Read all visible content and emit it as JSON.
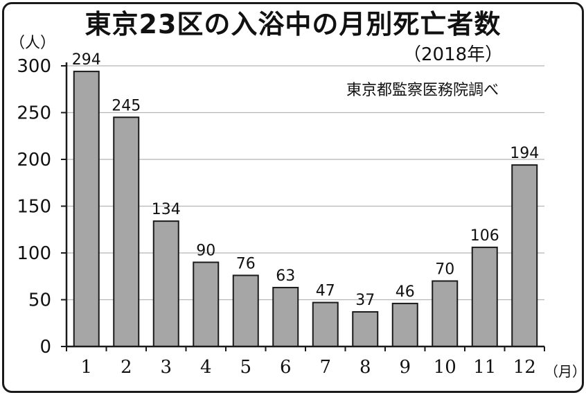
{
  "header": {
    "title": "東京23区の入浴中の月別死亡者数",
    "subtitle": "（2018年）",
    "source": "東京都監察医務院調べ"
  },
  "colors": {
    "bar_fill": "#a6a6a6",
    "bar_stroke": "#1a1a1a",
    "grid": "#b5b5b5",
    "text": "#111111"
  },
  "chart_data": {
    "type": "bar",
    "title": "東京23区の入浴中の月別死亡者数",
    "subtitle": "（2018年）",
    "ylabel": "（人）",
    "xlabel": "（月）",
    "categories": [
      "1",
      "2",
      "3",
      "4",
      "5",
      "6",
      "7",
      "8",
      "9",
      "10",
      "11",
      "12"
    ],
    "values": [
      294,
      245,
      134,
      90,
      76,
      63,
      47,
      37,
      46,
      70,
      106,
      194
    ],
    "ylim": [
      0,
      300
    ],
    "yticks": [
      0,
      50,
      100,
      150,
      200,
      250,
      300
    ],
    "grid": true,
    "data_labels": true,
    "annotation": "東京都監察医務院調べ"
  }
}
